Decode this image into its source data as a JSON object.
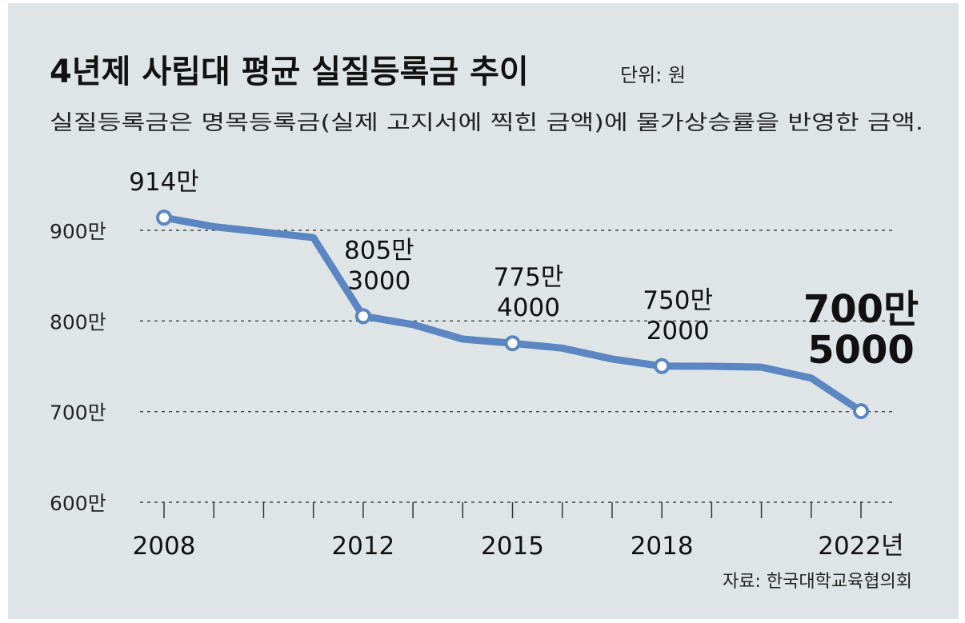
{
  "colors": {
    "background": "#dfe5e6",
    "line": "#5b86c1",
    "text": "#111111",
    "grid": "#444444"
  },
  "chart_data": {
    "type": "line",
    "title": "4년제 사립대 평균 실질등록금 추이",
    "unit_label": "단위: 원",
    "subtitle": "실질등록금은 명목등록금(실제 고지서에 찍힌 금액)에 물가상승률을 반영한 금액.",
    "source": "자료: 한국대학교육협의회",
    "xlabel": "",
    "ylabel": "",
    "x": [
      2008,
      2009,
      2010,
      2011,
      2012,
      2013,
      2014,
      2015,
      2016,
      2017,
      2018,
      2019,
      2020,
      2021,
      2022
    ],
    "values": [
      9140000,
      9040000,
      8980000,
      8920000,
      8053000,
      7960000,
      7800000,
      7754000,
      7700000,
      7580000,
      7502000,
      7500000,
      7490000,
      7370000,
      7005000
    ],
    "ylim": [
      6000000,
      9300000
    ],
    "y_ticks": [
      {
        "value": 9000000,
        "label": "900만"
      },
      {
        "value": 8000000,
        "label": "800만"
      },
      {
        "value": 7000000,
        "label": "700만"
      },
      {
        "value": 6000000,
        "label": "600만"
      }
    ],
    "x_tick_labels": [
      {
        "x": 2008,
        "label": "2008"
      },
      {
        "x": 2012,
        "label": "2012"
      },
      {
        "x": 2015,
        "label": "2015"
      },
      {
        "x": 2018,
        "label": "2018"
      },
      {
        "x": 2022,
        "label": "2022년"
      }
    ],
    "data_labels": [
      {
        "x": 2008,
        "lines": [
          "914만"
        ],
        "emphasis": false
      },
      {
        "x": 2012,
        "lines": [
          "805만",
          "3000"
        ],
        "emphasis": false
      },
      {
        "x": 2015,
        "lines": [
          "775만",
          "4000"
        ],
        "emphasis": false
      },
      {
        "x": 2018,
        "lines": [
          "750만",
          "2000"
        ],
        "emphasis": false
      },
      {
        "x": 2022,
        "lines": [
          "700만",
          "5000"
        ],
        "emphasis": true
      }
    ],
    "markers_at": [
      2008,
      2012,
      2015,
      2018,
      2022
    ],
    "grid": true
  }
}
